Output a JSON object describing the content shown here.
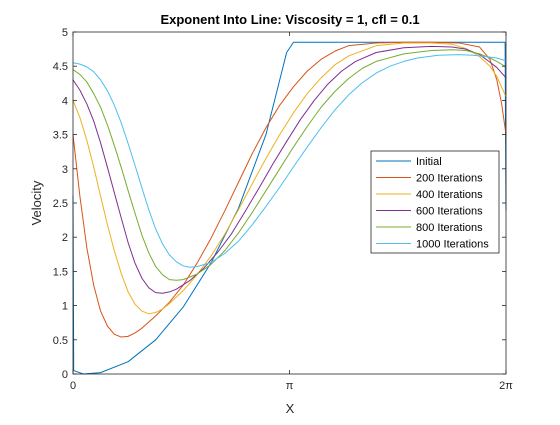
{
  "chart_data": {
    "type": "line",
    "title": "Exponent Into Line: Viscosity = 1, cfl = 0.1",
    "xlabel": "X",
    "ylabel": "Velocity",
    "xlim": [
      0,
      6.283185307
    ],
    "ylim": [
      0,
      5
    ],
    "xticks": [
      {
        "value": 0,
        "label": "0"
      },
      {
        "value": 3.141592654,
        "label": "π"
      },
      {
        "value": 6.283185307,
        "label": "2π"
      }
    ],
    "yticks": [
      {
        "value": 0,
        "label": "0"
      },
      {
        "value": 0.5,
        "label": "0.5"
      },
      {
        "value": 1,
        "label": "1"
      },
      {
        "value": 1.5,
        "label": "1.5"
      },
      {
        "value": 2,
        "label": "2"
      },
      {
        "value": 2.5,
        "label": "2.5"
      },
      {
        "value": 3,
        "label": "3"
      },
      {
        "value": 3.5,
        "label": "3.5"
      },
      {
        "value": 4,
        "label": "4"
      },
      {
        "value": 4.5,
        "label": "4.5"
      },
      {
        "value": 5,
        "label": "5"
      }
    ],
    "grid": false,
    "legend_position": "right",
    "series": [
      {
        "name": "Initial",
        "color": "#0072BD",
        "points": [
          [
            0,
            2.6
          ],
          [
            0.01,
            0.05
          ],
          [
            0.15,
            0
          ],
          [
            0.4,
            0.02
          ],
          [
            0.8,
            0.18
          ],
          [
            1.2,
            0.5
          ],
          [
            1.6,
            0.98
          ],
          [
            2.0,
            1.62
          ],
          [
            2.4,
            2.42
          ],
          [
            2.8,
            3.5
          ],
          [
            3.1,
            4.7
          ],
          [
            3.2,
            4.85
          ],
          [
            3.6,
            4.85
          ],
          [
            4.0,
            4.85
          ],
          [
            5.0,
            4.85
          ],
          [
            6.0,
            4.85
          ],
          [
            6.27,
            4.85
          ],
          [
            6.283,
            2.4
          ]
        ]
      },
      {
        "name": "200 Iterations",
        "color": "#D95319",
        "points": [
          [
            0,
            3.5
          ],
          [
            0.1,
            2.6
          ],
          [
            0.2,
            1.85
          ],
          [
            0.3,
            1.3
          ],
          [
            0.4,
            0.92
          ],
          [
            0.5,
            0.7
          ],
          [
            0.6,
            0.58
          ],
          [
            0.7,
            0.54
          ],
          [
            0.8,
            0.55
          ],
          [
            0.9,
            0.6
          ],
          [
            1.0,
            0.67
          ],
          [
            1.2,
            0.85
          ],
          [
            1.4,
            1.05
          ],
          [
            1.6,
            1.3
          ],
          [
            1.8,
            1.62
          ],
          [
            2.0,
            1.98
          ],
          [
            2.2,
            2.38
          ],
          [
            2.4,
            2.8
          ],
          [
            2.6,
            3.22
          ],
          [
            2.8,
            3.6
          ],
          [
            3.0,
            3.93
          ],
          [
            3.2,
            4.2
          ],
          [
            3.4,
            4.43
          ],
          [
            3.6,
            4.6
          ],
          [
            3.8,
            4.72
          ],
          [
            4.0,
            4.8
          ],
          [
            4.4,
            4.84
          ],
          [
            4.8,
            4.85
          ],
          [
            5.2,
            4.85
          ],
          [
            5.6,
            4.84
          ],
          [
            5.9,
            4.78
          ],
          [
            6.05,
            4.6
          ],
          [
            6.15,
            4.3
          ],
          [
            6.22,
            3.95
          ],
          [
            6.283,
            3.5
          ]
        ]
      },
      {
        "name": "400 Iterations",
        "color": "#EDB120",
        "points": [
          [
            0,
            4.0
          ],
          [
            0.1,
            3.75
          ],
          [
            0.2,
            3.42
          ],
          [
            0.3,
            3.03
          ],
          [
            0.4,
            2.6
          ],
          [
            0.5,
            2.18
          ],
          [
            0.6,
            1.8
          ],
          [
            0.7,
            1.47
          ],
          [
            0.8,
            1.2
          ],
          [
            0.9,
            1.02
          ],
          [
            1.0,
            0.92
          ],
          [
            1.1,
            0.88
          ],
          [
            1.2,
            0.9
          ],
          [
            1.3,
            0.95
          ],
          [
            1.4,
            1.03
          ],
          [
            1.6,
            1.22
          ],
          [
            1.8,
            1.45
          ],
          [
            2.0,
            1.72
          ],
          [
            2.2,
            2.04
          ],
          [
            2.4,
            2.4
          ],
          [
            2.6,
            2.78
          ],
          [
            2.8,
            3.15
          ],
          [
            3.0,
            3.5
          ],
          [
            3.2,
            3.82
          ],
          [
            3.4,
            4.1
          ],
          [
            3.6,
            4.33
          ],
          [
            3.8,
            4.52
          ],
          [
            4.0,
            4.65
          ],
          [
            4.4,
            4.8
          ],
          [
            4.8,
            4.84
          ],
          [
            5.2,
            4.84
          ],
          [
            5.5,
            4.82
          ],
          [
            5.7,
            4.76
          ],
          [
            5.9,
            4.64
          ],
          [
            6.05,
            4.5
          ],
          [
            6.15,
            4.35
          ],
          [
            6.283,
            4.05
          ]
        ]
      },
      {
        "name": "600 Iterations",
        "color": "#7E2F8E",
        "points": [
          [
            0,
            4.3
          ],
          [
            0.1,
            4.15
          ],
          [
            0.2,
            3.95
          ],
          [
            0.3,
            3.7
          ],
          [
            0.4,
            3.38
          ],
          [
            0.5,
            3.02
          ],
          [
            0.6,
            2.65
          ],
          [
            0.7,
            2.28
          ],
          [
            0.8,
            1.92
          ],
          [
            0.9,
            1.62
          ],
          [
            1.0,
            1.4
          ],
          [
            1.1,
            1.26
          ],
          [
            1.2,
            1.19
          ],
          [
            1.3,
            1.18
          ],
          [
            1.4,
            1.2
          ],
          [
            1.5,
            1.24
          ],
          [
            1.7,
            1.37
          ],
          [
            1.9,
            1.55
          ],
          [
            2.1,
            1.78
          ],
          [
            2.3,
            2.05
          ],
          [
            2.5,
            2.38
          ],
          [
            2.7,
            2.72
          ],
          [
            2.9,
            3.07
          ],
          [
            3.1,
            3.4
          ],
          [
            3.3,
            3.72
          ],
          [
            3.5,
            4.0
          ],
          [
            3.7,
            4.24
          ],
          [
            3.9,
            4.43
          ],
          [
            4.1,
            4.57
          ],
          [
            4.4,
            4.7
          ],
          [
            4.8,
            4.77
          ],
          [
            5.2,
            4.79
          ],
          [
            5.5,
            4.78
          ],
          [
            5.7,
            4.75
          ],
          [
            5.9,
            4.67
          ],
          [
            6.05,
            4.56
          ],
          [
            6.15,
            4.48
          ],
          [
            6.283,
            4.33
          ]
        ]
      },
      {
        "name": "800 Iterations",
        "color": "#77AC30",
        "points": [
          [
            0,
            4.45
          ],
          [
            0.1,
            4.38
          ],
          [
            0.2,
            4.27
          ],
          [
            0.3,
            4.1
          ],
          [
            0.4,
            3.9
          ],
          [
            0.5,
            3.64
          ],
          [
            0.6,
            3.34
          ],
          [
            0.7,
            3.02
          ],
          [
            0.8,
            2.68
          ],
          [
            0.9,
            2.35
          ],
          [
            1.0,
            2.03
          ],
          [
            1.1,
            1.77
          ],
          [
            1.2,
            1.57
          ],
          [
            1.3,
            1.45
          ],
          [
            1.4,
            1.38
          ],
          [
            1.5,
            1.37
          ],
          [
            1.6,
            1.38
          ],
          [
            1.8,
            1.46
          ],
          [
            2.0,
            1.6
          ],
          [
            2.2,
            1.8
          ],
          [
            2.4,
            2.06
          ],
          [
            2.6,
            2.36
          ],
          [
            2.8,
            2.68
          ],
          [
            3.0,
            3.0
          ],
          [
            3.2,
            3.32
          ],
          [
            3.4,
            3.62
          ],
          [
            3.6,
            3.9
          ],
          [
            3.8,
            4.13
          ],
          [
            4.0,
            4.32
          ],
          [
            4.2,
            4.47
          ],
          [
            4.4,
            4.57
          ],
          [
            4.8,
            4.68
          ],
          [
            5.2,
            4.73
          ],
          [
            5.5,
            4.74
          ],
          [
            5.7,
            4.73
          ],
          [
            5.9,
            4.68
          ],
          [
            6.05,
            4.62
          ],
          [
            6.15,
            4.57
          ],
          [
            6.283,
            4.49
          ]
        ]
      },
      {
        "name": "1000 Iterations",
        "color": "#4DBEEE",
        "points": [
          [
            0,
            4.55
          ],
          [
            0.1,
            4.53
          ],
          [
            0.2,
            4.49
          ],
          [
            0.3,
            4.42
          ],
          [
            0.4,
            4.3
          ],
          [
            0.5,
            4.14
          ],
          [
            0.6,
            3.93
          ],
          [
            0.7,
            3.67
          ],
          [
            0.8,
            3.37
          ],
          [
            0.9,
            3.05
          ],
          [
            1.0,
            2.72
          ],
          [
            1.1,
            2.4
          ],
          [
            1.2,
            2.12
          ],
          [
            1.3,
            1.9
          ],
          [
            1.4,
            1.74
          ],
          [
            1.5,
            1.64
          ],
          [
            1.6,
            1.58
          ],
          [
            1.7,
            1.56
          ],
          [
            1.8,
            1.57
          ],
          [
            2.0,
            1.63
          ],
          [
            2.2,
            1.76
          ],
          [
            2.4,
            1.94
          ],
          [
            2.6,
            2.18
          ],
          [
            2.8,
            2.45
          ],
          [
            3.0,
            2.73
          ],
          [
            3.2,
            3.03
          ],
          [
            3.4,
            3.32
          ],
          [
            3.6,
            3.6
          ],
          [
            3.8,
            3.86
          ],
          [
            4.0,
            4.08
          ],
          [
            4.2,
            4.26
          ],
          [
            4.4,
            4.4
          ],
          [
            4.6,
            4.5
          ],
          [
            4.8,
            4.57
          ],
          [
            5.0,
            4.62
          ],
          [
            5.3,
            4.66
          ],
          [
            5.6,
            4.67
          ],
          [
            5.8,
            4.66
          ],
          [
            6.0,
            4.64
          ],
          [
            6.15,
            4.62
          ],
          [
            6.283,
            4.58
          ]
        ]
      }
    ]
  }
}
